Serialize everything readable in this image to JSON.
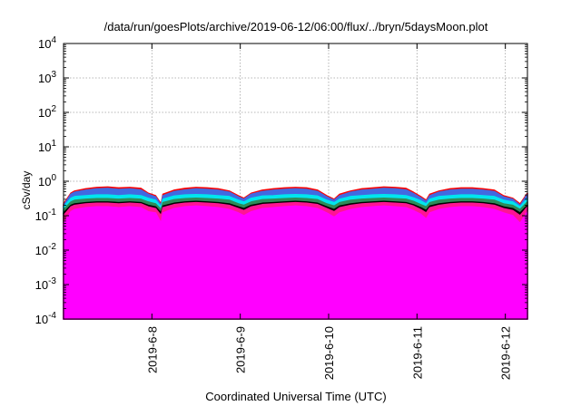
{
  "chart_data": {
    "type": "area",
    "title": "/data/run/goesPlots/archive/2019-06-12/06:00/flux/../bryn/5daysMoon.plot",
    "xlabel": "Coordinated Universal Time (UTC)",
    "ylabel": "cSv/day",
    "yscale": "log",
    "ylim": [
      0.0001,
      10000
    ],
    "xlim": [
      "2019-06-07T00:00",
      "2019-06-12T06:00"
    ],
    "grid": true,
    "legend": "none",
    "y_ticks": [
      {
        "value": 0.0001,
        "base": "10",
        "exp": "-4"
      },
      {
        "value": 0.001,
        "base": "10",
        "exp": "-3"
      },
      {
        "value": 0.01,
        "base": "10",
        "exp": "-2"
      },
      {
        "value": 0.1,
        "base": "10",
        "exp": "-1"
      },
      {
        "value": 1,
        "base": "10",
        "exp": "0"
      },
      {
        "value": 10,
        "base": "10",
        "exp": "1"
      },
      {
        "value": 100,
        "base": "10",
        "exp": "2"
      },
      {
        "value": 1000,
        "base": "10",
        "exp": "3"
      },
      {
        "value": 10000,
        "base": "10",
        "exp": "4"
      }
    ],
    "x_ticks": [
      {
        "date": "2019-06-08",
        "label": "2019-6-8"
      },
      {
        "date": "2019-06-09",
        "label": "2019-6-9"
      },
      {
        "date": "2019-06-10",
        "label": "2019-6-10"
      },
      {
        "date": "2019-06-11",
        "label": "2019-6-11"
      },
      {
        "date": "2019-06-12",
        "label": "2019-6-12"
      }
    ],
    "x": [
      "2019-06-07T00:00",
      "2019-06-07T02:00",
      "2019-06-07T03:00",
      "2019-06-07T06:00",
      "2019-06-07T09:00",
      "2019-06-07T12:00",
      "2019-06-07T15:00",
      "2019-06-07T18:00",
      "2019-06-07T21:00",
      "2019-06-07T23:00",
      "2019-06-08T01:00",
      "2019-06-08T02:30",
      "2019-06-08T03:00",
      "2019-06-08T06:00",
      "2019-06-08T09:00",
      "2019-06-08T12:00",
      "2019-06-08T15:00",
      "2019-06-08T18:00",
      "2019-06-08T21:00",
      "2019-06-08T23:30",
      "2019-06-09T01:00",
      "2019-06-09T03:00",
      "2019-06-09T06:00",
      "2019-06-09T09:00",
      "2019-06-09T12:00",
      "2019-06-09T15:00",
      "2019-06-09T18:00",
      "2019-06-09T21:00",
      "2019-06-09T23:30",
      "2019-06-10T01:30",
      "2019-06-10T03:00",
      "2019-06-10T06:00",
      "2019-06-10T09:00",
      "2019-06-10T12:00",
      "2019-06-10T15:00",
      "2019-06-10T18:00",
      "2019-06-10T21:00",
      "2019-06-10T23:00",
      "2019-06-11T01:00",
      "2019-06-11T02:30",
      "2019-06-11T03:30",
      "2019-06-11T06:00",
      "2019-06-11T09:00",
      "2019-06-11T12:00",
      "2019-06-11T15:00",
      "2019-06-11T18:00",
      "2019-06-11T21:00",
      "2019-06-11T23:30",
      "2019-06-12T02:00",
      "2019-06-12T04:00",
      "2019-06-12T06:00"
    ],
    "series": [
      {
        "color": "#ff00ff",
        "values": [
          0.06,
          0.13,
          0.15,
          0.17,
          0.18,
          0.18,
          0.17,
          0.18,
          0.17,
          0.13,
          0.12,
          0.06,
          0.12,
          0.16,
          0.18,
          0.19,
          0.18,
          0.17,
          0.15,
          0.12,
          0.1,
          0.13,
          0.16,
          0.17,
          0.18,
          0.19,
          0.18,
          0.16,
          0.12,
          0.09,
          0.12,
          0.15,
          0.17,
          0.18,
          0.19,
          0.18,
          0.17,
          0.14,
          0.11,
          0.08,
          0.12,
          0.15,
          0.17,
          0.18,
          0.18,
          0.17,
          0.15,
          0.12,
          0.1,
          0.06,
          0.13
        ]
      },
      {
        "color": "#ff1493",
        "values": [
          0.1,
          0.18,
          0.2,
          0.22,
          0.23,
          0.23,
          0.22,
          0.23,
          0.22,
          0.18,
          0.16,
          0.1,
          0.17,
          0.21,
          0.23,
          0.24,
          0.23,
          0.22,
          0.2,
          0.16,
          0.14,
          0.18,
          0.21,
          0.22,
          0.23,
          0.24,
          0.23,
          0.21,
          0.16,
          0.13,
          0.17,
          0.2,
          0.22,
          0.23,
          0.24,
          0.23,
          0.22,
          0.19,
          0.15,
          0.12,
          0.17,
          0.2,
          0.22,
          0.23,
          0.23,
          0.22,
          0.2,
          0.16,
          0.14,
          0.1,
          0.18
        ]
      },
      {
        "color": "#000000",
        "values": [
          0.12,
          0.2,
          0.22,
          0.24,
          0.25,
          0.25,
          0.24,
          0.25,
          0.24,
          0.2,
          0.18,
          0.12,
          0.19,
          0.23,
          0.25,
          0.26,
          0.25,
          0.24,
          0.22,
          0.18,
          0.16,
          0.2,
          0.23,
          0.24,
          0.25,
          0.26,
          0.25,
          0.23,
          0.18,
          0.15,
          0.19,
          0.22,
          0.24,
          0.25,
          0.26,
          0.25,
          0.24,
          0.21,
          0.17,
          0.14,
          0.19,
          0.22,
          0.24,
          0.25,
          0.25,
          0.24,
          0.22,
          0.18,
          0.16,
          0.12,
          0.2
        ]
      },
      {
        "color": "#2e8b57",
        "values": [
          0.15,
          0.25,
          0.28,
          0.3,
          0.31,
          0.31,
          0.3,
          0.31,
          0.3,
          0.25,
          0.22,
          0.15,
          0.24,
          0.29,
          0.31,
          0.32,
          0.31,
          0.3,
          0.28,
          0.22,
          0.2,
          0.25,
          0.29,
          0.3,
          0.31,
          0.32,
          0.31,
          0.29,
          0.22,
          0.19,
          0.24,
          0.28,
          0.3,
          0.31,
          0.32,
          0.31,
          0.3,
          0.26,
          0.21,
          0.18,
          0.24,
          0.28,
          0.3,
          0.31,
          0.31,
          0.3,
          0.28,
          0.22,
          0.2,
          0.15,
          0.25
        ]
      },
      {
        "color": "#00e5ee",
        "values": [
          0.18,
          0.32,
          0.36,
          0.38,
          0.4,
          0.4,
          0.38,
          0.4,
          0.38,
          0.32,
          0.28,
          0.18,
          0.3,
          0.37,
          0.4,
          0.41,
          0.4,
          0.38,
          0.36,
          0.28,
          0.25,
          0.32,
          0.37,
          0.38,
          0.4,
          0.41,
          0.4,
          0.37,
          0.28,
          0.24,
          0.3,
          0.36,
          0.38,
          0.4,
          0.41,
          0.4,
          0.38,
          0.33,
          0.27,
          0.22,
          0.3,
          0.36,
          0.38,
          0.4,
          0.4,
          0.38,
          0.36,
          0.28,
          0.25,
          0.18,
          0.32
        ]
      },
      {
        "color": "#ff0000",
        "values": [
          0.22,
          0.45,
          0.52,
          0.6,
          0.66,
          0.68,
          0.64,
          0.66,
          0.62,
          0.45,
          0.38,
          0.22,
          0.42,
          0.55,
          0.62,
          0.66,
          0.64,
          0.6,
          0.52,
          0.38,
          0.32,
          0.45,
          0.55,
          0.6,
          0.64,
          0.66,
          0.64,
          0.55,
          0.38,
          0.3,
          0.42,
          0.52,
          0.6,
          0.64,
          0.68,
          0.66,
          0.62,
          0.48,
          0.36,
          0.28,
          0.42,
          0.52,
          0.6,
          0.64,
          0.64,
          0.6,
          0.55,
          0.38,
          0.32,
          0.22,
          0.45
        ]
      },
      {
        "color": "#4169e1",
        "values": [
          0.2,
          0.42,
          0.48,
          0.55,
          0.6,
          0.62,
          0.58,
          0.6,
          0.56,
          0.42,
          0.35,
          0.2,
          0.38,
          0.5,
          0.56,
          0.6,
          0.58,
          0.55,
          0.48,
          0.35,
          0.3,
          0.42,
          0.5,
          0.55,
          0.58,
          0.6,
          0.58,
          0.5,
          0.35,
          0.28,
          0.38,
          0.48,
          0.55,
          0.58,
          0.62,
          0.6,
          0.56,
          0.44,
          0.33,
          0.26,
          0.38,
          0.48,
          0.55,
          0.58,
          0.58,
          0.55,
          0.5,
          0.35,
          0.3,
          0.2,
          0.42
        ]
      }
    ]
  }
}
